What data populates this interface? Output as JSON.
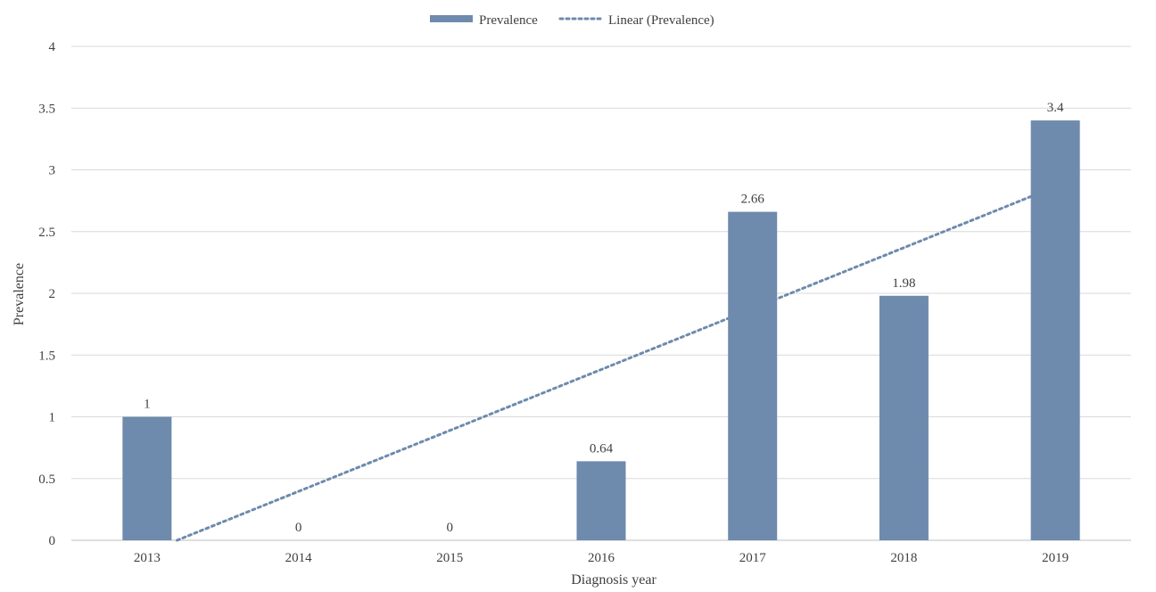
{
  "chart_data": {
    "type": "bar",
    "categories": [
      "2013",
      "2014",
      "2015",
      "2016",
      "2017",
      "2018",
      "2019"
    ],
    "series": [
      {
        "name": "Prevalence",
        "values": [
          1,
          0,
          0,
          0.64,
          2.66,
          1.98,
          3.4
        ],
        "color": "#6e8aad"
      }
    ],
    "trendline": {
      "name": "Linear (Prevalence)",
      "type": "linear",
      "color": "#6e8aad",
      "style": "dotted"
    },
    "data_labels": [
      "1",
      "0",
      "0",
      "0.64",
      "2.66",
      "1.98",
      "3.4"
    ],
    "y_ticks": [
      "0",
      "0.5",
      "1",
      "1.5",
      "2",
      "2.5",
      "3",
      "3.5",
      "4"
    ],
    "xlabel": "Diagnosis year",
    "ylabel": "Prevalence",
    "ylim": [
      0,
      4
    ],
    "grid": true,
    "legend_position": "top-center"
  }
}
